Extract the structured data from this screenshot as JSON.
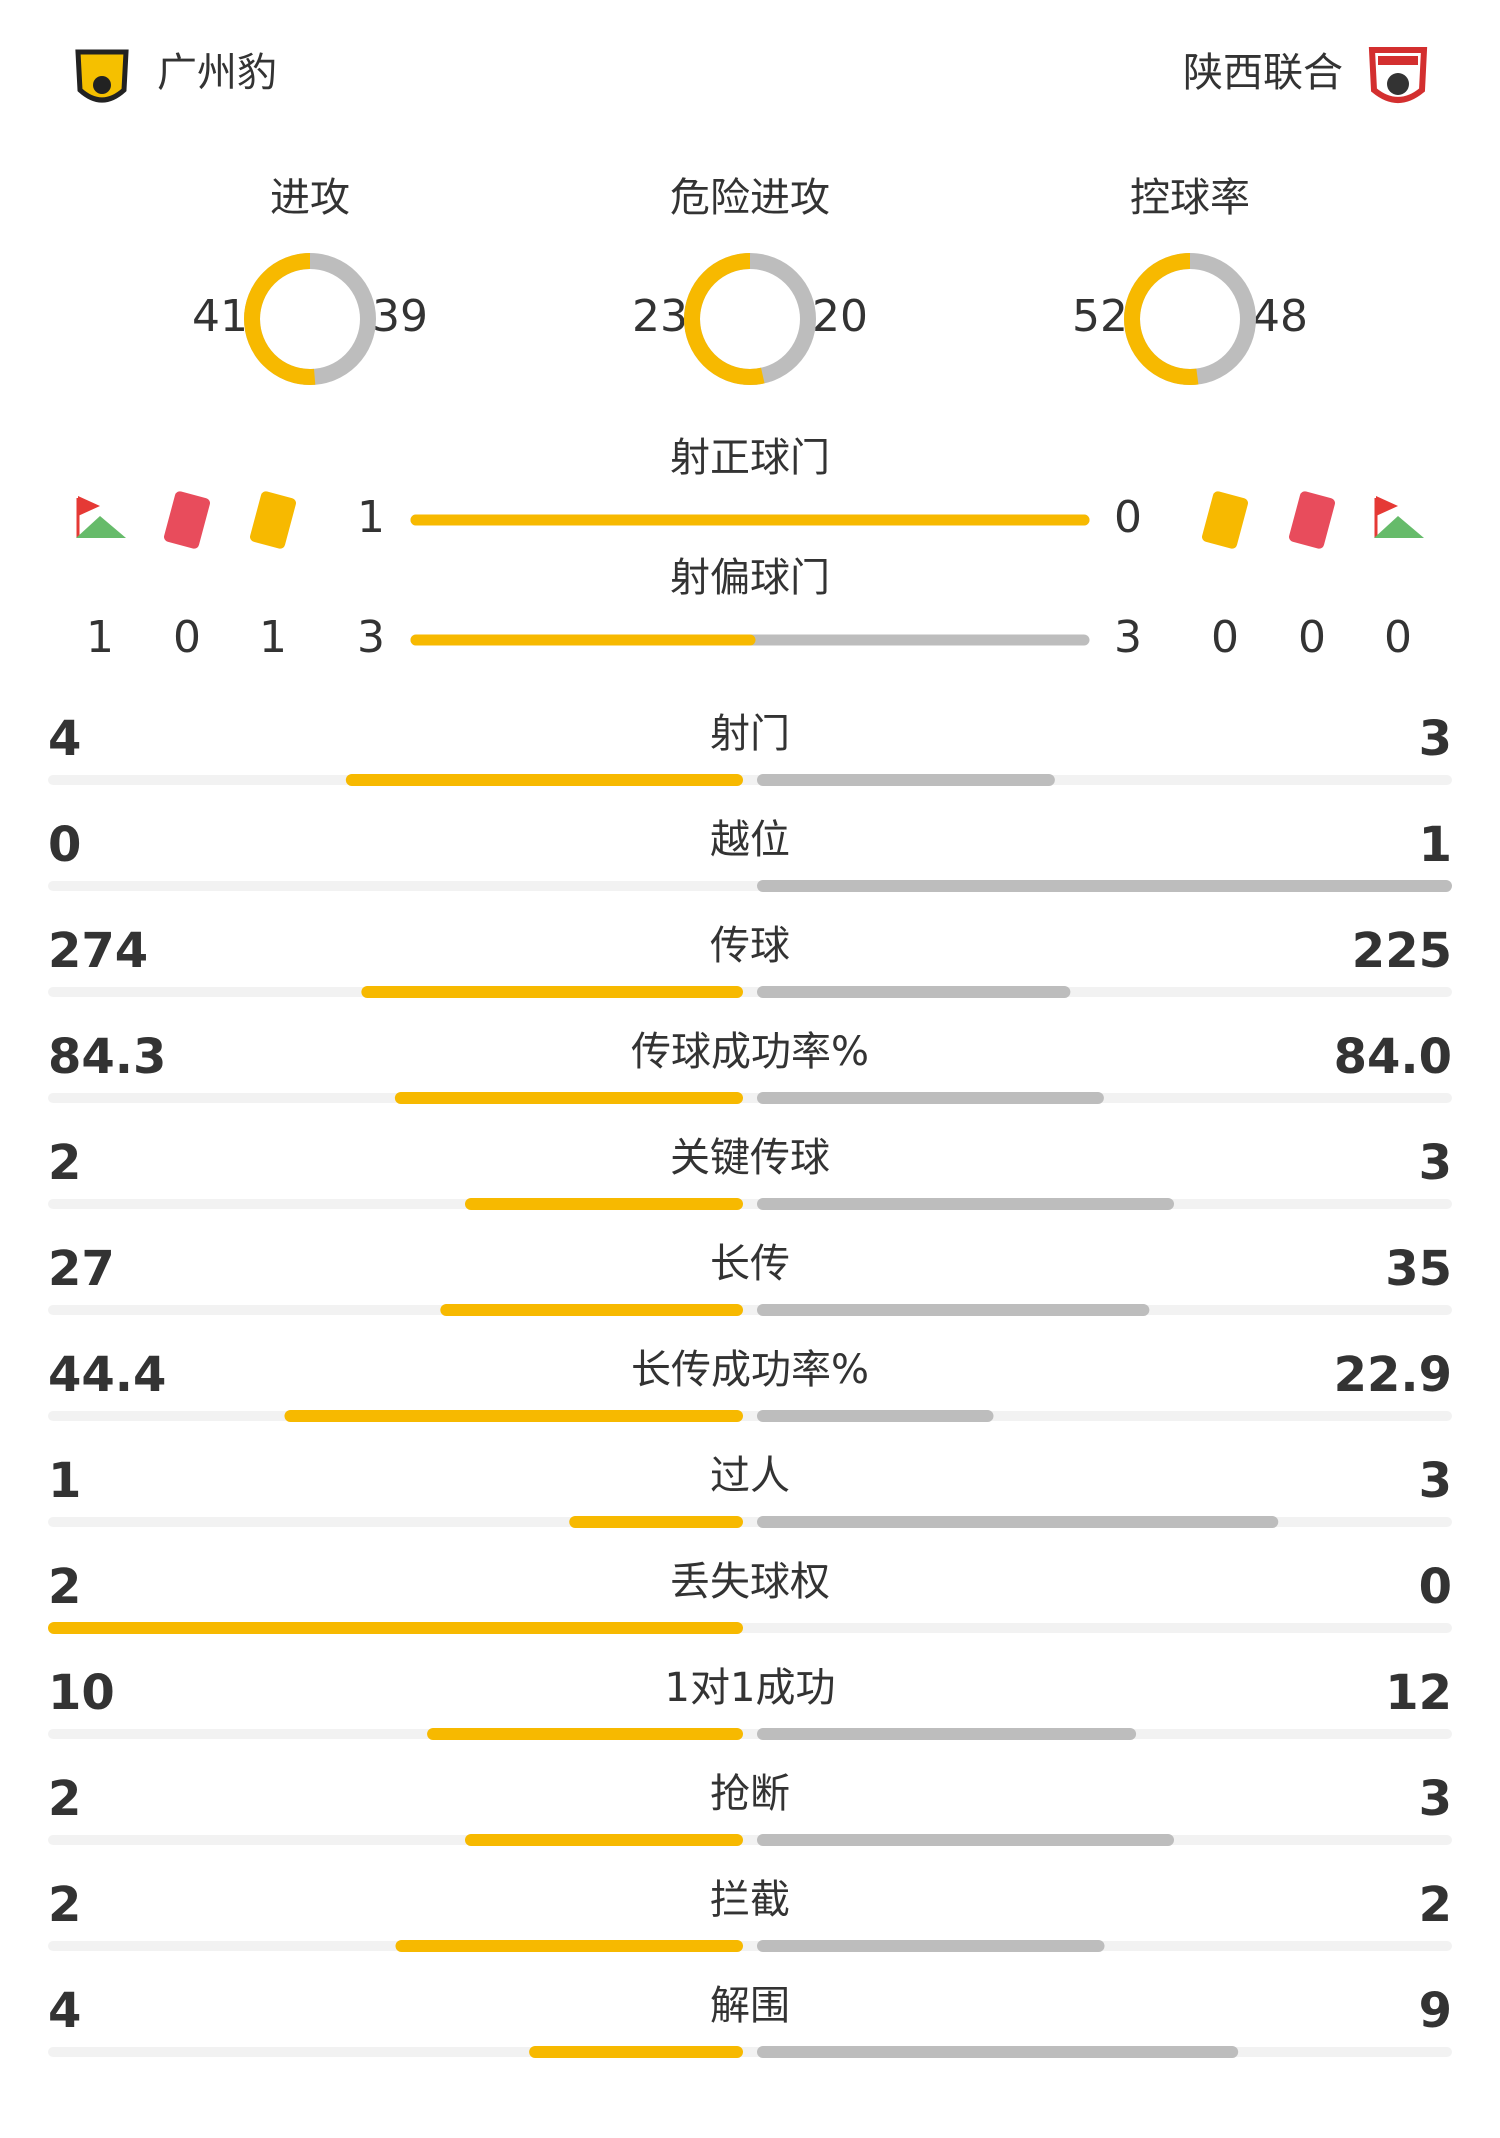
{
  "header": {
    "home": "广州豹",
    "away": "陕西联合"
  },
  "donuts": [
    {
      "label": "进攻",
      "home": 41,
      "away": 39
    },
    {
      "label": "危险进攻",
      "home": 23,
      "away": 20
    },
    {
      "label": "控球率",
      "home": 52,
      "away": 48
    }
  ],
  "shots": {
    "on_target": {
      "label": "射正球门",
      "home": 1,
      "away": 0
    },
    "off_target": {
      "label": "射偏球门",
      "home": 3,
      "away": 3
    },
    "home_counts": {
      "corners": 1,
      "red_cards": 0,
      "yellow_cards": 1
    },
    "away_counts": {
      "yellow_cards": 0,
      "red_cards": 0,
      "corners": 0
    }
  },
  "stats": [
    {
      "label": "射门",
      "home": 4,
      "away": 3
    },
    {
      "label": "越位",
      "home": 0,
      "away": 1
    },
    {
      "label": "传球",
      "home": 274,
      "away": 225
    },
    {
      "label": "传球成功率%",
      "home": 84.3,
      "away": "84.0"
    },
    {
      "label": "关键传球",
      "home": 2,
      "away": 3
    },
    {
      "label": "长传",
      "home": 27,
      "away": 35
    },
    {
      "label": "长传成功率%",
      "home": 44.4,
      "away": 22.9
    },
    {
      "label": "过人",
      "home": 1,
      "away": 3
    },
    {
      "label": "丢失球权",
      "home": 2,
      "away": 0
    },
    {
      "label": "1对1成功",
      "home": 10,
      "away": 12
    },
    {
      "label": "抢断",
      "home": 2,
      "away": 3
    },
    {
      "label": "拦截",
      "home": 2,
      "away": 2
    },
    {
      "label": "解围",
      "home": 4,
      "away": 9
    }
  ]
}
